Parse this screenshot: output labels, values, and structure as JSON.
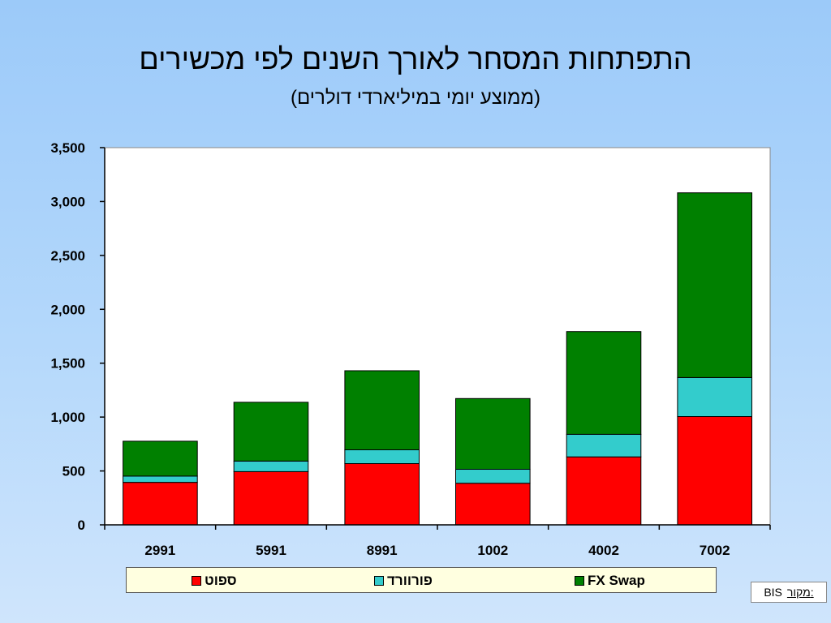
{
  "chart_data": {
    "type": "bar",
    "stacked": true,
    "title": "התפתחות המסחר לאורך השנים לפי מכשירים",
    "subtitle": "(ממוצע יומי במיליארדי דולרים)",
    "categories": [
      "2991",
      "5991",
      "8991",
      "1002",
      "4002",
      "7002"
    ],
    "series": [
      {
        "name": "ספוט",
        "color": "#ff0000",
        "values": [
          394,
          494,
          568,
          386,
          631,
          1005
        ]
      },
      {
        "name": "פורוורד",
        "color": "#33cccc",
        "values": [
          58,
          97,
          128,
          130,
          209,
          362
        ]
      },
      {
        "name": "FX Swap",
        "color": "#008000",
        "values": [
          324,
          546,
          734,
          656,
          954,
          1714
        ]
      }
    ],
    "yticks": [
      "0",
      "500",
      "1,000",
      "1,500",
      "2,000",
      "2,500",
      "3,000",
      "3,500"
    ],
    "ylim": [
      0,
      3500
    ],
    "grid": false,
    "legend_position": "bottom"
  },
  "source": {
    "label": "מקור:",
    "value": "BIS"
  }
}
